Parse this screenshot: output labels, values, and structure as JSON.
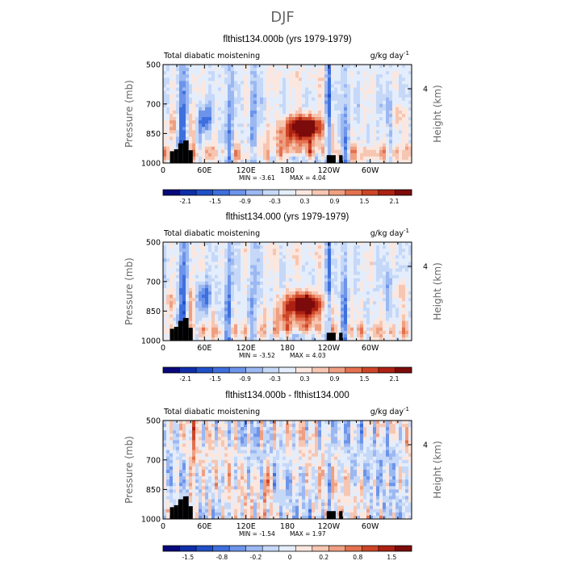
{
  "figure_title": "DJF",
  "palette": [
    "#08087a",
    "#0f2ea8",
    "#2050c8",
    "#3f6fdd",
    "#6d94ea",
    "#9bb8f2",
    "#c6d8f8",
    "#e4edfb",
    "#fbe7df",
    "#f6c6b2",
    "#ef9f81",
    "#e3714f",
    "#cd4527",
    "#ac2113",
    "#7c0b0b"
  ],
  "land_color": "#000000",
  "chart_data": [
    {
      "type": "heatmap",
      "title": "flthist134.000b (yrs 1979-1979)",
      "subtitle_left": "Total diabatic moistening",
      "units_label": "g/kg day",
      "units_exponent": "-1",
      "ylabel": "Pressure (mb)",
      "ylabel_right": "Height (km)",
      "x_ticks": [
        "0",
        "60E",
        "120E",
        "180",
        "120W",
        "60W"
      ],
      "x_range": [
        0,
        360
      ],
      "y_ticks": [
        "500",
        "700",
        "850",
        "1000"
      ],
      "y_range": [
        500,
        1000
      ],
      "right_ticks": [
        "4"
      ],
      "min_text": "MIN =   -3.61",
      "max_text": "MAX =    4.04",
      "colorbar_levels": [
        "-2.1",
        "-1.5",
        "-0.9",
        "-0.3",
        "0.3",
        "0.9",
        "1.5",
        "2.1"
      ],
      "variant": "control",
      "seed": 11
    },
    {
      "type": "heatmap",
      "title": "flthist134.000 (yrs 1979-1979)",
      "subtitle_left": "Total diabatic moistening",
      "units_label": "g/kg day",
      "units_exponent": "-1",
      "ylabel": "Pressure (mb)",
      "ylabel_right": "Height (km)",
      "x_ticks": [
        "0",
        "60E",
        "120E",
        "180",
        "120W",
        "60W"
      ],
      "x_range": [
        0,
        360
      ],
      "y_ticks": [
        "500",
        "700",
        "850",
        "1000"
      ],
      "y_range": [
        500,
        1000
      ],
      "right_ticks": [
        "4"
      ],
      "min_text": "MIN =   -3.52",
      "max_text": "MAX =    4.03",
      "colorbar_levels": [
        "-2.1",
        "-1.5",
        "-0.9",
        "-0.3",
        "0.3",
        "0.9",
        "1.5",
        "2.1"
      ],
      "variant": "control",
      "seed": 23
    },
    {
      "type": "heatmap",
      "title": "flthist134.000b - flthist134.000",
      "subtitle_left": "Total diabatic moistening",
      "units_label": "g/kg day",
      "units_exponent": "-1",
      "ylabel": "Pressure (mb)",
      "ylabel_right": "Height (km)",
      "x_ticks": [
        "0",
        "60E",
        "120E",
        "180",
        "120W",
        "60W"
      ],
      "x_range": [
        0,
        360
      ],
      "y_ticks": [
        "500",
        "700",
        "850",
        "1000"
      ],
      "y_range": [
        500,
        1000
      ],
      "right_ticks": [
        "4"
      ],
      "min_text": "MIN =   -1.54",
      "max_text": "MAX =    1.97",
      "colorbar_levels": [
        "-1.5",
        "-0.8",
        "-0.2",
        "0",
        "0.2",
        "0.8",
        "1.5"
      ],
      "variant": "difference",
      "seed": 37
    }
  ]
}
